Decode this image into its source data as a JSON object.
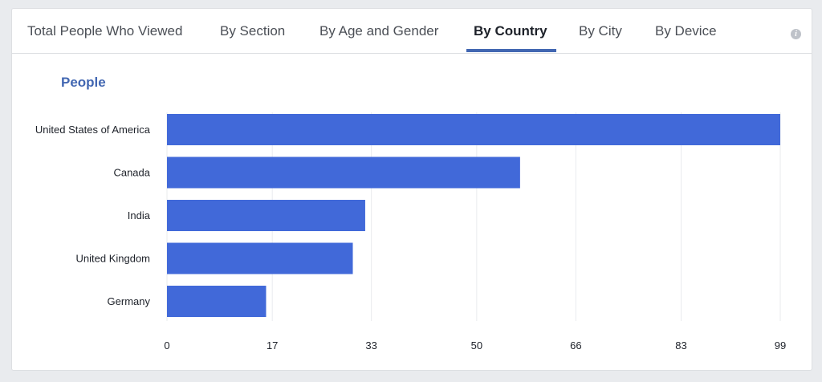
{
  "tabs": [
    {
      "label": "Total People Who Viewed",
      "active": false
    },
    {
      "label": "By Section",
      "active": false
    },
    {
      "label": "By Age and Gender",
      "active": false
    },
    {
      "label": "By Country",
      "active": true
    },
    {
      "label": "By City",
      "active": false
    },
    {
      "label": "By Device",
      "active": false
    }
  ],
  "info_icon": {
    "glyph": "i",
    "name": "info-icon"
  },
  "section_title": "People",
  "colors": {
    "accent": "#4267b2",
    "bar": "#4169d9",
    "gridline": "#e9ebee"
  },
  "chart_data": {
    "type": "bar",
    "orientation": "horizontal",
    "title": "People",
    "categories": [
      "United States of America",
      "Canada",
      "India",
      "United Kingdom",
      "Germany"
    ],
    "values": [
      99,
      57,
      32,
      30,
      16
    ],
    "xticks": [
      0,
      17,
      33,
      50,
      66,
      83,
      99
    ],
    "xlim": [
      0,
      99
    ],
    "grid": true,
    "legend": "none"
  }
}
